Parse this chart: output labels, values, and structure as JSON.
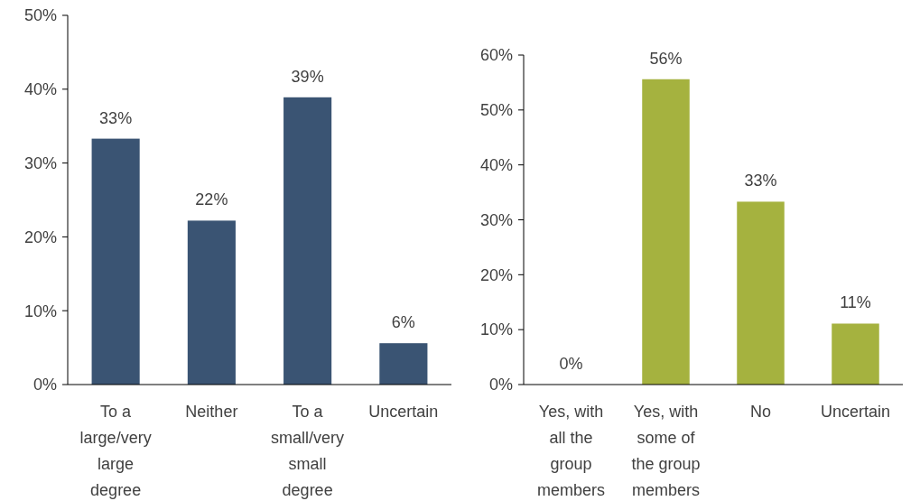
{
  "chart_data": [
    {
      "type": "bar",
      "categories": [
        "To a large/very large degree",
        "Neither",
        "To a small/very small degree",
        "Uncertain"
      ],
      "values": [
        33.3,
        22.2,
        38.9,
        5.6
      ],
      "value_labels": [
        "33%",
        "22%",
        "39%",
        "6%"
      ],
      "color": "#3a5473",
      "ylim": [
        0,
        50
      ],
      "yticks": [
        {
          "value": 0,
          "label": "0%"
        },
        {
          "value": 10,
          "label": "10%"
        },
        {
          "value": 20,
          "label": "20%"
        },
        {
          "value": 30,
          "label": "30%"
        },
        {
          "value": 40,
          "label": "40%"
        },
        {
          "value": 50,
          "label": "50%"
        }
      ],
      "grid": false
    },
    {
      "type": "bar",
      "categories": [
        "Yes, with all the group members",
        "Yes, with some of the group members",
        "No",
        "Uncertain"
      ],
      "values": [
        0,
        55.6,
        33.3,
        11.1
      ],
      "value_labels": [
        "0%",
        "56%",
        "33%",
        "11%"
      ],
      "color": "#a5b23f",
      "ylim": [
        0,
        60
      ],
      "yticks": [
        {
          "value": 0,
          "label": "0%"
        },
        {
          "value": 10,
          "label": "10%"
        },
        {
          "value": 20,
          "label": "20%"
        },
        {
          "value": 30,
          "label": "30%"
        },
        {
          "value": 40,
          "label": "40%"
        },
        {
          "value": 50,
          "label": "50%"
        },
        {
          "value": 60,
          "label": "60%"
        }
      ],
      "grid": false
    }
  ]
}
